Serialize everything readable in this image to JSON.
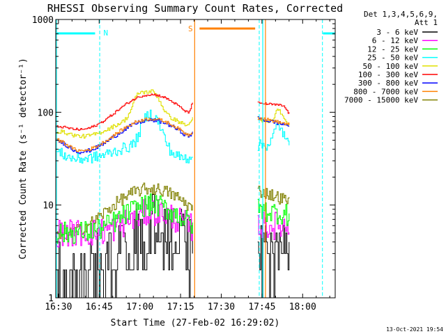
{
  "chart_data": {
    "type": "line",
    "title": "RHESSI Observing Summary Count Rates, Corrected",
    "xlabel": "Start Time (27-Feb-02 16:29:02)",
    "ylabel": "Corrected Count Rate (s⁻¹ detector⁻¹)",
    "y_scale": "log",
    "ylim": [
      1,
      1000
    ],
    "x_minutes_since_1629_02": [
      0,
      103
    ],
    "x_ticks": [
      {
        "label": "16:30",
        "t": 1
      },
      {
        "label": "16:45",
        "t": 16
      },
      {
        "label": "17:00",
        "t": 31
      },
      {
        "label": "17:15",
        "t": 46
      },
      {
        "label": "17:30",
        "t": 61
      },
      {
        "label": "17:45",
        "t": 76
      },
      {
        "label": "18:00",
        "t": 91
      }
    ],
    "y_ticks": [
      {
        "label": "1",
        "value": 1
      },
      {
        "label": "10",
        "value": 10
      },
      {
        "label": "100",
        "value": 100
      },
      {
        "label": "1000",
        "value": 1000
      }
    ],
    "legend_header": [
      "Det 1,3,4,5,6,9,",
      "Att 1"
    ],
    "legend_position": "right",
    "series": [
      {
        "name": "3 - 6 keV",
        "color": "#000000"
      },
      {
        "name": "6 - 12 keV",
        "color": "#ff00ff"
      },
      {
        "name": "12 - 25 keV",
        "color": "#00ff00"
      },
      {
        "name": "25 - 50 keV",
        "color": "#00ffff"
      },
      {
        "name": "50 - 100 keV",
        "color": "#e0e000"
      },
      {
        "name": "100 - 300 keV",
        "color": "#ff0000"
      },
      {
        "name": "300 - 800 keV",
        "color": "#0000ff"
      },
      {
        "name": "800 - 7000 keV",
        "color": "#ff8000"
      },
      {
        "name": "7000 - 15000 keV",
        "color": "#808000"
      }
    ],
    "annotations": [
      {
        "label": "N",
        "color": "#00ffff"
      },
      {
        "label": "S",
        "color": "#ff8000"
      }
    ],
    "footer_timestamp": "13-Oct-2021 19:54"
  }
}
